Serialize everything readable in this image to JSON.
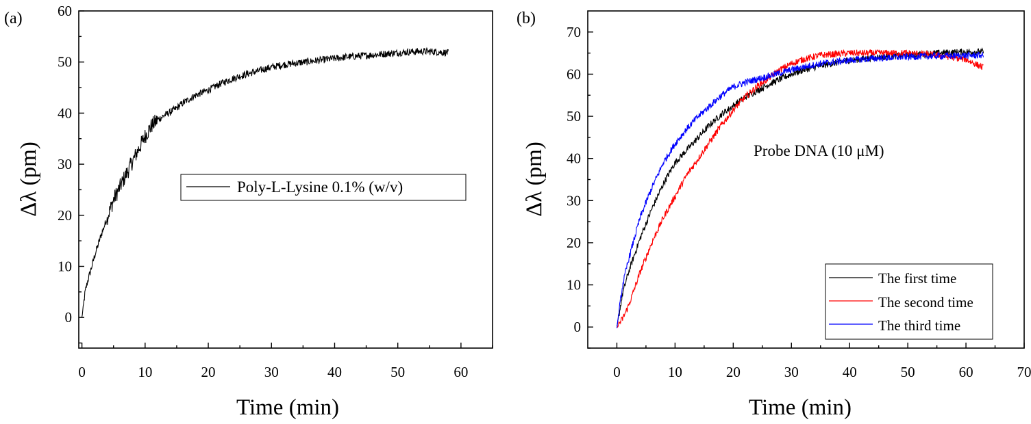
{
  "chart_data": [
    {
      "panel_label": "(a)",
      "type": "line",
      "xlabel": "Time (min)",
      "ylabel": "Δλ (pm)",
      "xlim": [
        -0.5,
        65
      ],
      "ylim": [
        -6,
        60
      ],
      "xticks": [
        0,
        10,
        20,
        30,
        40,
        50,
        60
      ],
      "yticks": [
        0,
        10,
        20,
        30,
        40,
        50,
        60
      ],
      "grid": false,
      "legend_position": "center-right",
      "series": [
        {
          "name": "Poly-L-Lysine 0.1% (w/v)",
          "color": "#000000",
          "x": [
            0,
            0.5,
            1,
            2,
            3,
            4,
            5,
            6,
            7,
            8,
            9,
            10,
            11,
            12,
            13,
            14,
            15,
            16,
            18,
            20,
            22,
            24,
            26,
            28,
            30,
            32,
            34,
            36,
            38,
            40,
            42,
            44,
            46,
            48,
            50,
            52,
            54,
            56,
            58
          ],
          "y": [
            0,
            5,
            7.5,
            12,
            16,
            19.5,
            23,
            25.5,
            28,
            30.5,
            33,
            35.5,
            37.5,
            38.7,
            39.5,
            40.2,
            41,
            42,
            43.5,
            44.5,
            45.8,
            46.8,
            47.6,
            48.3,
            49,
            49.5,
            49.8,
            50.1,
            50.4,
            50.7,
            51,
            51.2,
            51.4,
            51.6,
            51.8,
            52,
            52.1,
            52,
            51.8
          ]
        }
      ]
    },
    {
      "panel_label": "(b)",
      "type": "line",
      "xlabel": "Time (min)",
      "ylabel": "Δλ (pm)",
      "annotation": "Probe DNA (10 μM)",
      "xlim": [
        -5,
        70
      ],
      "ylim": [
        -5,
        75
      ],
      "xticks": [
        0,
        10,
        20,
        30,
        40,
        50,
        60,
        70
      ],
      "yticks": [
        0,
        10,
        20,
        30,
        40,
        50,
        60,
        70
      ],
      "grid": false,
      "legend_position": "bottom-right",
      "series": [
        {
          "name": "The first time",
          "color": "#000000",
          "x": [
            0,
            1,
            2,
            3,
            4,
            6,
            8,
            10,
            12,
            14,
            16,
            18,
            20,
            22,
            24,
            26,
            28,
            30,
            32,
            35,
            40,
            45,
            50,
            55,
            60,
            63
          ],
          "y": [
            0,
            8,
            13,
            17,
            21,
            28,
            34,
            39,
            42,
            45,
            48,
            50.5,
            52.5,
            54.5,
            56,
            57.5,
            58.8,
            60,
            61,
            62,
            63.3,
            64,
            64.5,
            65,
            65.3,
            65.3
          ]
        },
        {
          "name": "The second time",
          "color": "#ff0000",
          "x": [
            0,
            1,
            2,
            3,
            4,
            6,
            8,
            10,
            12,
            14,
            16,
            18,
            20,
            22,
            24,
            26,
            28,
            30,
            32,
            35,
            40,
            45,
            50,
            55,
            60,
            63
          ],
          "y": [
            0,
            2,
            5,
            9,
            13,
            20,
            26,
            31,
            36,
            40,
            44,
            48,
            51.5,
            54.5,
            57,
            59,
            61,
            62.5,
            63.5,
            64.5,
            65,
            65,
            65,
            64.5,
            63.5,
            61.5
          ]
        },
        {
          "name": "The third time",
          "color": "#0000ff",
          "x": [
            0,
            1,
            2,
            3,
            4,
            6,
            8,
            10,
            12,
            14,
            16,
            18,
            20,
            22,
            24,
            26,
            28,
            30,
            32,
            35,
            40,
            45,
            50,
            55,
            60,
            63
          ],
          "y": [
            0,
            10,
            16,
            21,
            26,
            33,
            39,
            43.5,
            47,
            50,
            52.5,
            55,
            57,
            58,
            58.8,
            59.5,
            60.3,
            61,
            61.7,
            62.5,
            63.3,
            63.8,
            64.1,
            64.3,
            64.4,
            64.5
          ]
        }
      ]
    }
  ]
}
